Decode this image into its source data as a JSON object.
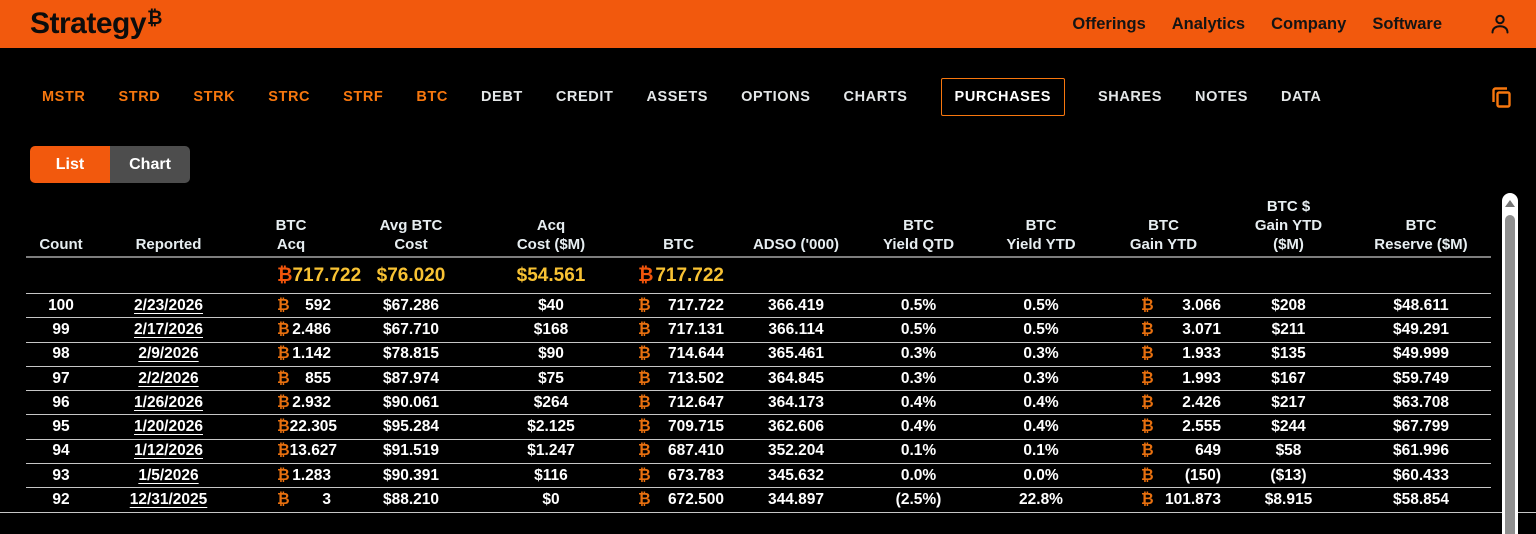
{
  "brand": {
    "name": "Strategy",
    "btc_symbol": "₿"
  },
  "topnav": {
    "items": [
      "Offerings",
      "Analytics",
      "Company",
      "Software"
    ]
  },
  "tabbar": {
    "ticker_tabs": [
      "MSTR",
      "STRD",
      "STRK",
      "STRC",
      "STRF",
      "BTC"
    ],
    "section_tabs": [
      "DEBT",
      "CREDIT",
      "ASSETS",
      "OPTIONS",
      "CHARTS",
      "PURCHASES",
      "SHARES",
      "NOTES",
      "DATA"
    ],
    "active_tab": "PURCHASES"
  },
  "view_toggle": {
    "options": [
      "List",
      "Chart"
    ],
    "active": "List"
  },
  "icons": {
    "profile": "person-icon",
    "copy": "copy-icon",
    "scroll_up": "scroll-up-arrow-icon",
    "btc": "btc-icon"
  },
  "colors": {
    "brand_orange": "#f2590d",
    "tab_orange": "#f7770e",
    "gold": "#f8c233",
    "btc_orange": "#e8700f",
    "background": "#000000",
    "toggle_gray": "#4d4d4d"
  },
  "purchases_table": {
    "columns": [
      {
        "key": "count",
        "label_lines": [
          "Count"
        ]
      },
      {
        "key": "reported",
        "label_lines": [
          "Reported"
        ]
      },
      {
        "key": "btc_acq",
        "label_lines": [
          "BTC",
          "Acq"
        ],
        "btc_prefix": true
      },
      {
        "key": "avg_btc_cost",
        "label_lines": [
          "Avg BTC",
          "Cost"
        ]
      },
      {
        "key": "acq_cost",
        "label_lines": [
          "Acq",
          "Cost ($M)"
        ]
      },
      {
        "key": "btc",
        "label_lines": [
          "BTC"
        ],
        "btc_prefix": true
      },
      {
        "key": "adso",
        "label_lines": [
          "ADSO ('000)"
        ]
      },
      {
        "key": "yield_qtd",
        "label_lines": [
          "BTC",
          "Yield QTD"
        ]
      },
      {
        "key": "yield_ytd",
        "label_lines": [
          "BTC",
          "Yield YTD"
        ]
      },
      {
        "key": "gain_ytd",
        "label_lines": [
          "BTC",
          "Gain YTD"
        ],
        "btc_prefix": true
      },
      {
        "key": "gain_usd_ytd",
        "label_lines": [
          "BTC $",
          "Gain YTD",
          "($M)"
        ]
      },
      {
        "key": "reserve",
        "label_lines": [
          "BTC",
          "Reserve ($M)"
        ]
      }
    ],
    "summary": {
      "btc_acq": "717.722",
      "avg_btc_cost": "$76.020",
      "acq_cost": "$54.561",
      "btc": "717.722"
    },
    "rows": [
      {
        "count": "100",
        "reported": "2/23/2026",
        "btc_acq": "592",
        "avg_btc_cost": "$67.286",
        "acq_cost": "$40",
        "btc": "717.722",
        "adso": "366.419",
        "yield_qtd": "0.5%",
        "yield_ytd": "0.5%",
        "gain_ytd": "3.066",
        "gain_usd_ytd": "$208",
        "reserve": "$48.611"
      },
      {
        "count": "99",
        "reported": "2/17/2026",
        "btc_acq": "2.486",
        "avg_btc_cost": "$67.710",
        "acq_cost": "$168",
        "btc": "717.131",
        "adso": "366.114",
        "yield_qtd": "0.5%",
        "yield_ytd": "0.5%",
        "gain_ytd": "3.071",
        "gain_usd_ytd": "$211",
        "reserve": "$49.291"
      },
      {
        "count": "98",
        "reported": "2/9/2026",
        "btc_acq": "1.142",
        "avg_btc_cost": "$78.815",
        "acq_cost": "$90",
        "btc": "714.644",
        "adso": "365.461",
        "yield_qtd": "0.3%",
        "yield_ytd": "0.3%",
        "gain_ytd": "1.933",
        "gain_usd_ytd": "$135",
        "reserve": "$49.999"
      },
      {
        "count": "97",
        "reported": "2/2/2026",
        "btc_acq": "855",
        "avg_btc_cost": "$87.974",
        "acq_cost": "$75",
        "btc": "713.502",
        "adso": "364.845",
        "yield_qtd": "0.3%",
        "yield_ytd": "0.3%",
        "gain_ytd": "1.993",
        "gain_usd_ytd": "$167",
        "reserve": "$59.749"
      },
      {
        "count": "96",
        "reported": "1/26/2026",
        "btc_acq": "2.932",
        "avg_btc_cost": "$90.061",
        "acq_cost": "$264",
        "btc": "712.647",
        "adso": "364.173",
        "yield_qtd": "0.4%",
        "yield_ytd": "0.4%",
        "gain_ytd": "2.426",
        "gain_usd_ytd": "$217",
        "reserve": "$63.708"
      },
      {
        "count": "95",
        "reported": "1/20/2026",
        "btc_acq": "22.305",
        "avg_btc_cost": "$95.284",
        "acq_cost": "$2.125",
        "btc": "709.715",
        "adso": "362.606",
        "yield_qtd": "0.4%",
        "yield_ytd": "0.4%",
        "gain_ytd": "2.555",
        "gain_usd_ytd": "$244",
        "reserve": "$67.799"
      },
      {
        "count": "94",
        "reported": "1/12/2026",
        "btc_acq": "13.627",
        "avg_btc_cost": "$91.519",
        "acq_cost": "$1.247",
        "btc": "687.410",
        "adso": "352.204",
        "yield_qtd": "0.1%",
        "yield_ytd": "0.1%",
        "gain_ytd": "649",
        "gain_usd_ytd": "$58",
        "reserve": "$61.996"
      },
      {
        "count": "93",
        "reported": "1/5/2026",
        "btc_acq": "1.283",
        "avg_btc_cost": "$90.391",
        "acq_cost": "$116",
        "btc": "673.783",
        "adso": "345.632",
        "yield_qtd": "0.0%",
        "yield_ytd": "0.0%",
        "gain_ytd": "(150)",
        "gain_usd_ytd": "($13)",
        "reserve": "$60.433"
      },
      {
        "count": "92",
        "reported": "12/31/2025",
        "btc_acq": "3",
        "avg_btc_cost": "$88.210",
        "acq_cost": "$0",
        "btc": "672.500",
        "adso": "344.897",
        "yield_qtd": "(2.5%)",
        "yield_ytd": "22.8%",
        "gain_ytd": "101.873",
        "gain_usd_ytd": "$8.915",
        "reserve": "$58.854"
      }
    ]
  }
}
